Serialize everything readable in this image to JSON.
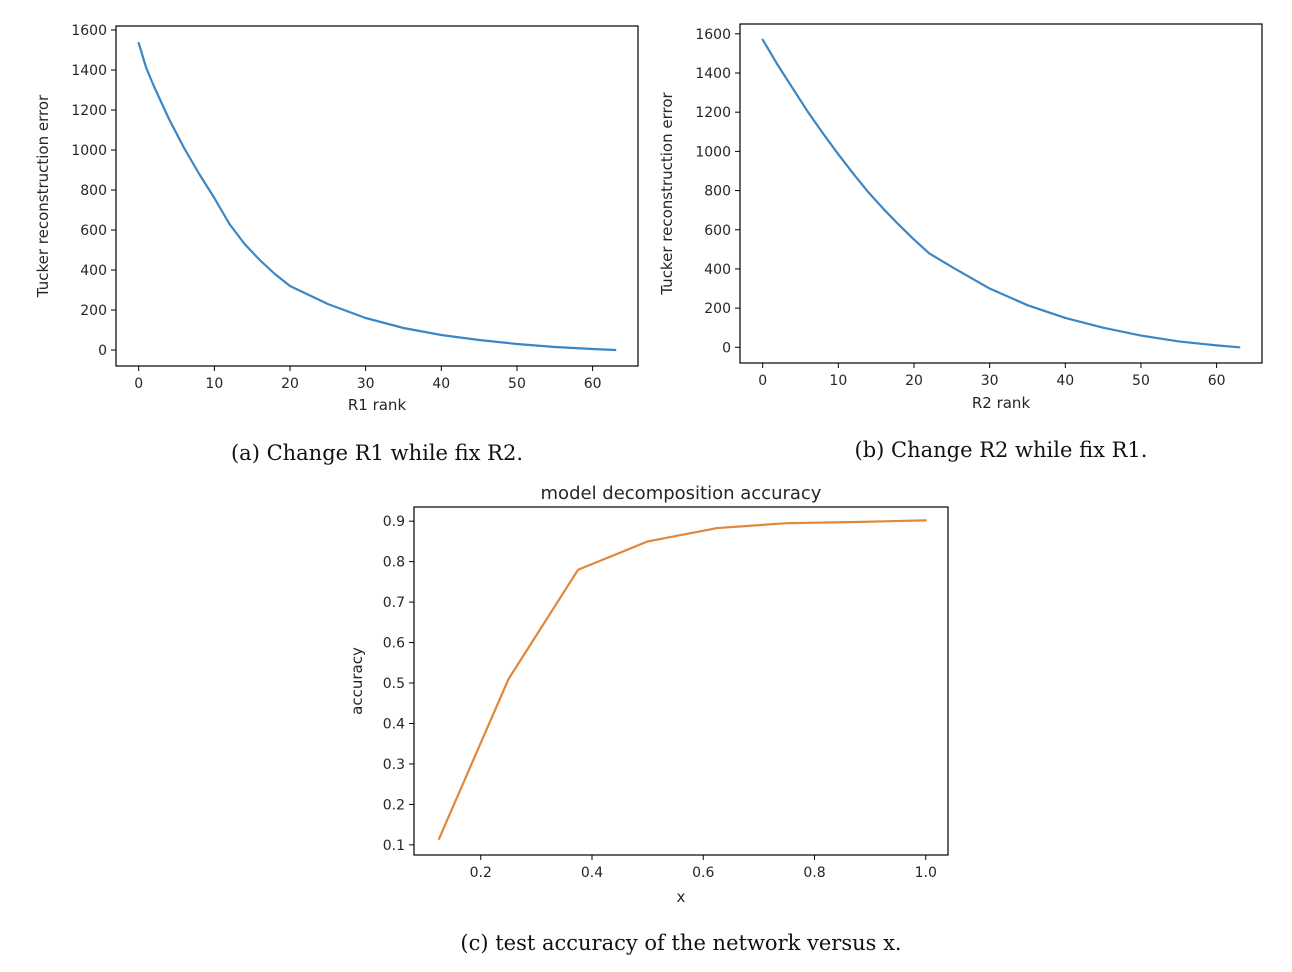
{
  "chart_data": [
    {
      "type": "line",
      "title": "",
      "xlabel": "R1 rank",
      "ylabel": "Tucker reconstruction error",
      "caption": "(a) Change R1 while fix R2.",
      "xlim": [
        -3,
        66
      ],
      "ylim": [
        -80,
        1620
      ],
      "xticks": [
        0,
        10,
        20,
        30,
        40,
        50,
        60
      ],
      "yticks": [
        0,
        200,
        400,
        600,
        800,
        1000,
        1200,
        1400,
        1600
      ],
      "color": "#3b86c5",
      "x": [
        0,
        1,
        2,
        4,
        6,
        8,
        10,
        12,
        14,
        16,
        18,
        20,
        25,
        30,
        35,
        40,
        45,
        50,
        55,
        60,
        63
      ],
      "y": [
        1535,
        1410,
        1320,
        1155,
        1010,
        880,
        760,
        630,
        530,
        450,
        380,
        320,
        230,
        160,
        110,
        75,
        50,
        30,
        15,
        5,
        0
      ]
    },
    {
      "type": "line",
      "title": "",
      "xlabel": "R2 rank",
      "ylabel": "Tucker reconstruction error",
      "caption": "(b) Change R2 while fix R1.",
      "xlim": [
        -3,
        66
      ],
      "ylim": [
        -80,
        1650
      ],
      "xticks": [
        0,
        10,
        20,
        30,
        40,
        50,
        60
      ],
      "yticks": [
        0,
        200,
        400,
        600,
        800,
        1000,
        1200,
        1400,
        1600
      ],
      "color": "#3b86c5",
      "x": [
        0,
        2,
        4,
        6,
        8,
        10,
        12,
        14,
        16,
        18,
        20,
        22,
        25,
        30,
        35,
        40,
        45,
        50,
        55,
        60,
        63
      ],
      "y": [
        1570,
        1440,
        1320,
        1200,
        1090,
        985,
        885,
        790,
        705,
        625,
        550,
        480,
        410,
        300,
        215,
        150,
        100,
        60,
        30,
        10,
        0
      ]
    },
    {
      "type": "line",
      "title": "model decomposition accuracy",
      "xlabel": "x",
      "ylabel": "accuracy",
      "caption": "(c) test accuracy of the network versus x.",
      "xlim": [
        0.08,
        1.04
      ],
      "ylim": [
        0.075,
        0.935
      ],
      "xticks": [
        0.2,
        0.4,
        0.6,
        0.8,
        1.0
      ],
      "xticklabels": [
        "0.2",
        "0.4",
        "0.6",
        "0.8",
        "1.0"
      ],
      "yticks": [
        0.1,
        0.2,
        0.3,
        0.4,
        0.5,
        0.6,
        0.7,
        0.8,
        0.9
      ],
      "yticklabels": [
        "0.1",
        "0.2",
        "0.3",
        "0.4",
        "0.5",
        "0.6",
        "0.7",
        "0.8",
        "0.9"
      ],
      "color": "#e0873c",
      "x": [
        0.125,
        0.25,
        0.375,
        0.5,
        0.625,
        0.75,
        0.875,
        1.0
      ],
      "y": [
        0.115,
        0.51,
        0.78,
        0.85,
        0.883,
        0.895,
        0.898,
        0.902
      ]
    }
  ]
}
